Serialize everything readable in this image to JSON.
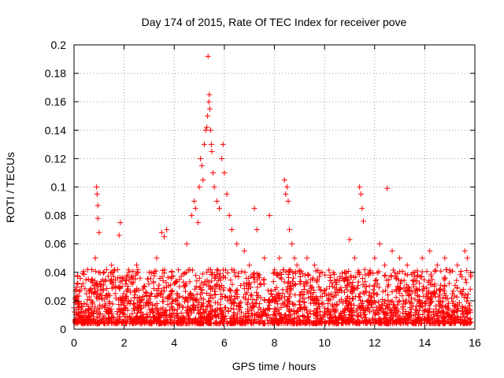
{
  "chart_data": {
    "type": "scatter",
    "title": "Day 174 of 2015, Rate Of TEC Index for receiver pove",
    "xlabel": "GPS time / hours",
    "ylabel": "ROTI / TECUs",
    "xlim": [
      0,
      16
    ],
    "ylim": [
      0,
      0.2
    ],
    "xticks": [
      "0",
      "2",
      "4",
      "6",
      "8",
      "10",
      "12",
      "14",
      "16"
    ],
    "yticks": [
      "0",
      "0.02",
      "0.04",
      "0.06",
      "0.08",
      "0.1",
      "0.12",
      "0.14",
      "0.16",
      "0.18",
      "0.2"
    ],
    "grid": true,
    "marker": "+",
    "color": "#ff0000",
    "series": [
      {
        "name": "ROTI",
        "x": [
          0.0,
          0.1,
          0.2,
          0.3,
          0.5,
          0.7,
          0.85,
          0.9,
          0.92,
          0.95,
          0.95,
          1.0,
          1.2,
          1.5,
          1.8,
          1.85,
          2.0,
          2.2,
          2.5,
          2.8,
          3.0,
          3.3,
          3.5,
          3.6,
          3.7,
          3.9,
          4.2,
          4.5,
          4.7,
          4.8,
          4.85,
          4.95,
          5.0,
          5.05,
          5.1,
          5.15,
          5.2,
          5.25,
          5.3,
          5.33,
          5.35,
          5.38,
          5.4,
          5.42,
          5.45,
          5.48,
          5.5,
          5.55,
          5.6,
          5.7,
          5.8,
          5.9,
          5.95,
          6.0,
          6.1,
          6.2,
          6.3,
          6.5,
          6.8,
          7.0,
          7.2,
          7.3,
          7.6,
          7.8,
          8.0,
          8.2,
          8.4,
          8.45,
          8.5,
          8.55,
          8.6,
          8.7,
          8.8,
          8.9,
          9.0,
          9.3,
          9.6,
          9.9,
          10.2,
          10.5,
          10.8,
          11.0,
          11.2,
          11.4,
          11.45,
          11.5,
          11.55,
          11.8,
          12.0,
          12.2,
          12.4,
          12.5,
          12.7,
          13.0,
          13.3,
          13.6,
          13.9,
          14.2,
          14.5,
          14.8,
          15.0,
          15.3,
          15.6,
          15.7
        ],
        "y": [
          0.015,
          0.022,
          0.018,
          0.03,
          0.025,
          0.035,
          0.05,
          0.1,
          0.095,
          0.087,
          0.078,
          0.068,
          0.04,
          0.045,
          0.066,
          0.075,
          0.02,
          0.035,
          0.045,
          0.03,
          0.04,
          0.05,
          0.068,
          0.065,
          0.07,
          0.04,
          0.035,
          0.06,
          0.08,
          0.09,
          0.085,
          0.075,
          0.1,
          0.12,
          0.115,
          0.105,
          0.13,
          0.14,
          0.142,
          0.15,
          0.192,
          0.16,
          0.165,
          0.155,
          0.14,
          0.13,
          0.125,
          0.11,
          0.1,
          0.09,
          0.085,
          0.12,
          0.13,
          0.11,
          0.095,
          0.08,
          0.07,
          0.06,
          0.055,
          0.045,
          0.085,
          0.07,
          0.05,
          0.08,
          0.04,
          0.05,
          0.105,
          0.095,
          0.1,
          0.09,
          0.07,
          0.06,
          0.05,
          0.045,
          0.04,
          0.05,
          0.045,
          0.04,
          0.03,
          0.035,
          0.04,
          0.063,
          0.05,
          0.1,
          0.095,
          0.085,
          0.076,
          0.04,
          0.05,
          0.06,
          0.045,
          0.099,
          0.055,
          0.05,
          0.045,
          0.04,
          0.05,
          0.055,
          0.045,
          0.05,
          0.04,
          0.045,
          0.055,
          0.05
        ]
      }
    ]
  }
}
